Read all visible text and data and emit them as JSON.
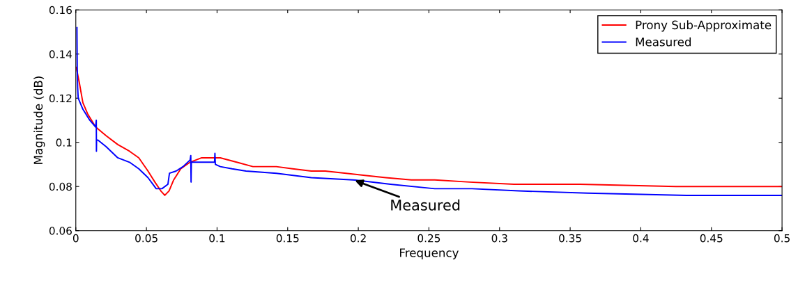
{
  "chart_data": {
    "type": "line",
    "xlabel": "Frequency",
    "ylabel": "Magnitude (dB)",
    "xlim": [
      0,
      0.5
    ],
    "ylim": [
      0.06,
      0.16
    ],
    "xticks": [
      0,
      0.05,
      0.1,
      0.15,
      0.2,
      0.25,
      0.3,
      0.35,
      0.4,
      0.45,
      0.5
    ],
    "yticks": [
      0.06,
      0.08,
      0.1,
      0.12,
      0.14,
      0.16
    ],
    "grid": false,
    "legend": "top right",
    "marker": "none",
    "line_style": "solid",
    "annotations": [
      {
        "text": "Measured",
        "x": 0.1963,
        "y": 0.083
      }
    ],
    "series": [
      {
        "name": "Prony Sub-Approximate",
        "color": "#ff0000",
        "x": [
          0.0003,
          0.0025,
          0.005,
          0.0083,
          0.014,
          0.0215,
          0.0297,
          0.038,
          0.0446,
          0.0511,
          0.056,
          0.0602,
          0.063,
          0.066,
          0.0693,
          0.0743,
          0.0809,
          0.0891,
          0.099,
          0.1023,
          0.1139,
          0.1254,
          0.142,
          0.1535,
          0.1667,
          0.1766,
          0.1914,
          0.2046,
          0.2195,
          0.2376,
          0.2541,
          0.2789,
          0.3102,
          0.357,
          0.4249,
          0.5
        ],
        "values": [
          0.134,
          0.127,
          0.118,
          0.113,
          0.107,
          0.103,
          0.099,
          0.096,
          0.093,
          0.087,
          0.082,
          0.078,
          0.076,
          0.078,
          0.083,
          0.088,
          0.091,
          0.093,
          0.093,
          0.093,
          0.091,
          0.089,
          0.089,
          0.088,
          0.087,
          0.087,
          0.086,
          0.085,
          0.084,
          0.083,
          0.083,
          0.082,
          0.081,
          0.081,
          0.08,
          0.08
        ]
      },
      {
        "name": "Measured",
        "color": "#0000ff",
        "x": [
          0.0008,
          0.001,
          0.0013,
          0.0017,
          0.005,
          0.0099,
          0.014,
          0.0145,
          0.0146,
          0.0147,
          0.0157,
          0.0215,
          0.0297,
          0.038,
          0.0446,
          0.0511,
          0.0569,
          0.061,
          0.0652,
          0.0663,
          0.071,
          0.0759,
          0.0809,
          0.0814,
          0.0816,
          0.0818,
          0.0908,
          0.0982,
          0.0985,
          0.0988,
          0.1023,
          0.1106,
          0.1205,
          0.142,
          0.1667,
          0.1963,
          0.2228,
          0.2541,
          0.2805,
          0.3135,
          0.3622,
          0.4323,
          0.5
        ],
        "values": [
          0.152,
          0.134,
          0.125,
          0.12,
          0.115,
          0.11,
          0.107,
          0.11,
          0.096,
          0.101,
          0.101,
          0.098,
          0.093,
          0.091,
          0.088,
          0.084,
          0.079,
          0.079,
          0.081,
          0.086,
          0.087,
          0.089,
          0.092,
          0.094,
          0.082,
          0.091,
          0.091,
          0.091,
          0.095,
          0.09,
          0.089,
          0.088,
          0.087,
          0.086,
          0.084,
          0.083,
          0.081,
          0.079,
          0.079,
          0.078,
          0.077,
          0.076,
          0.076
        ]
      }
    ]
  }
}
